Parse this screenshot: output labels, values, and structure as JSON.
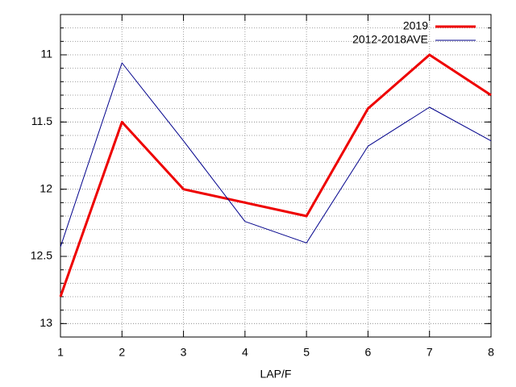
{
  "chart_data": {
    "type": "line",
    "x_label": "LAP/F",
    "x": [
      1,
      2,
      3,
      4,
      5,
      6,
      7,
      8
    ],
    "xlim": [
      1,
      8
    ],
    "xticks": [
      1,
      2,
      3,
      4,
      5,
      6,
      7,
      8
    ],
    "ylim": [
      10.7,
      13.1
    ],
    "y_reversed": true,
    "yticks": [
      11,
      11.5,
      12,
      12.5,
      13
    ],
    "minor_ticks_per_major": 5,
    "grid": true,
    "legend": "top-right",
    "series": [
      {
        "name": "2019",
        "color": "#ee0000",
        "width": 3,
        "values": [
          12.8,
          11.5,
          12.0,
          12.1,
          12.2,
          11.4,
          11.0,
          11.3
        ]
      },
      {
        "name": "2012-2018AVE",
        "color": "#00008b",
        "width": 1,
        "values": [
          12.43,
          11.06,
          11.64,
          12.24,
          12.4,
          11.68,
          11.39,
          11.64
        ]
      }
    ]
  }
}
